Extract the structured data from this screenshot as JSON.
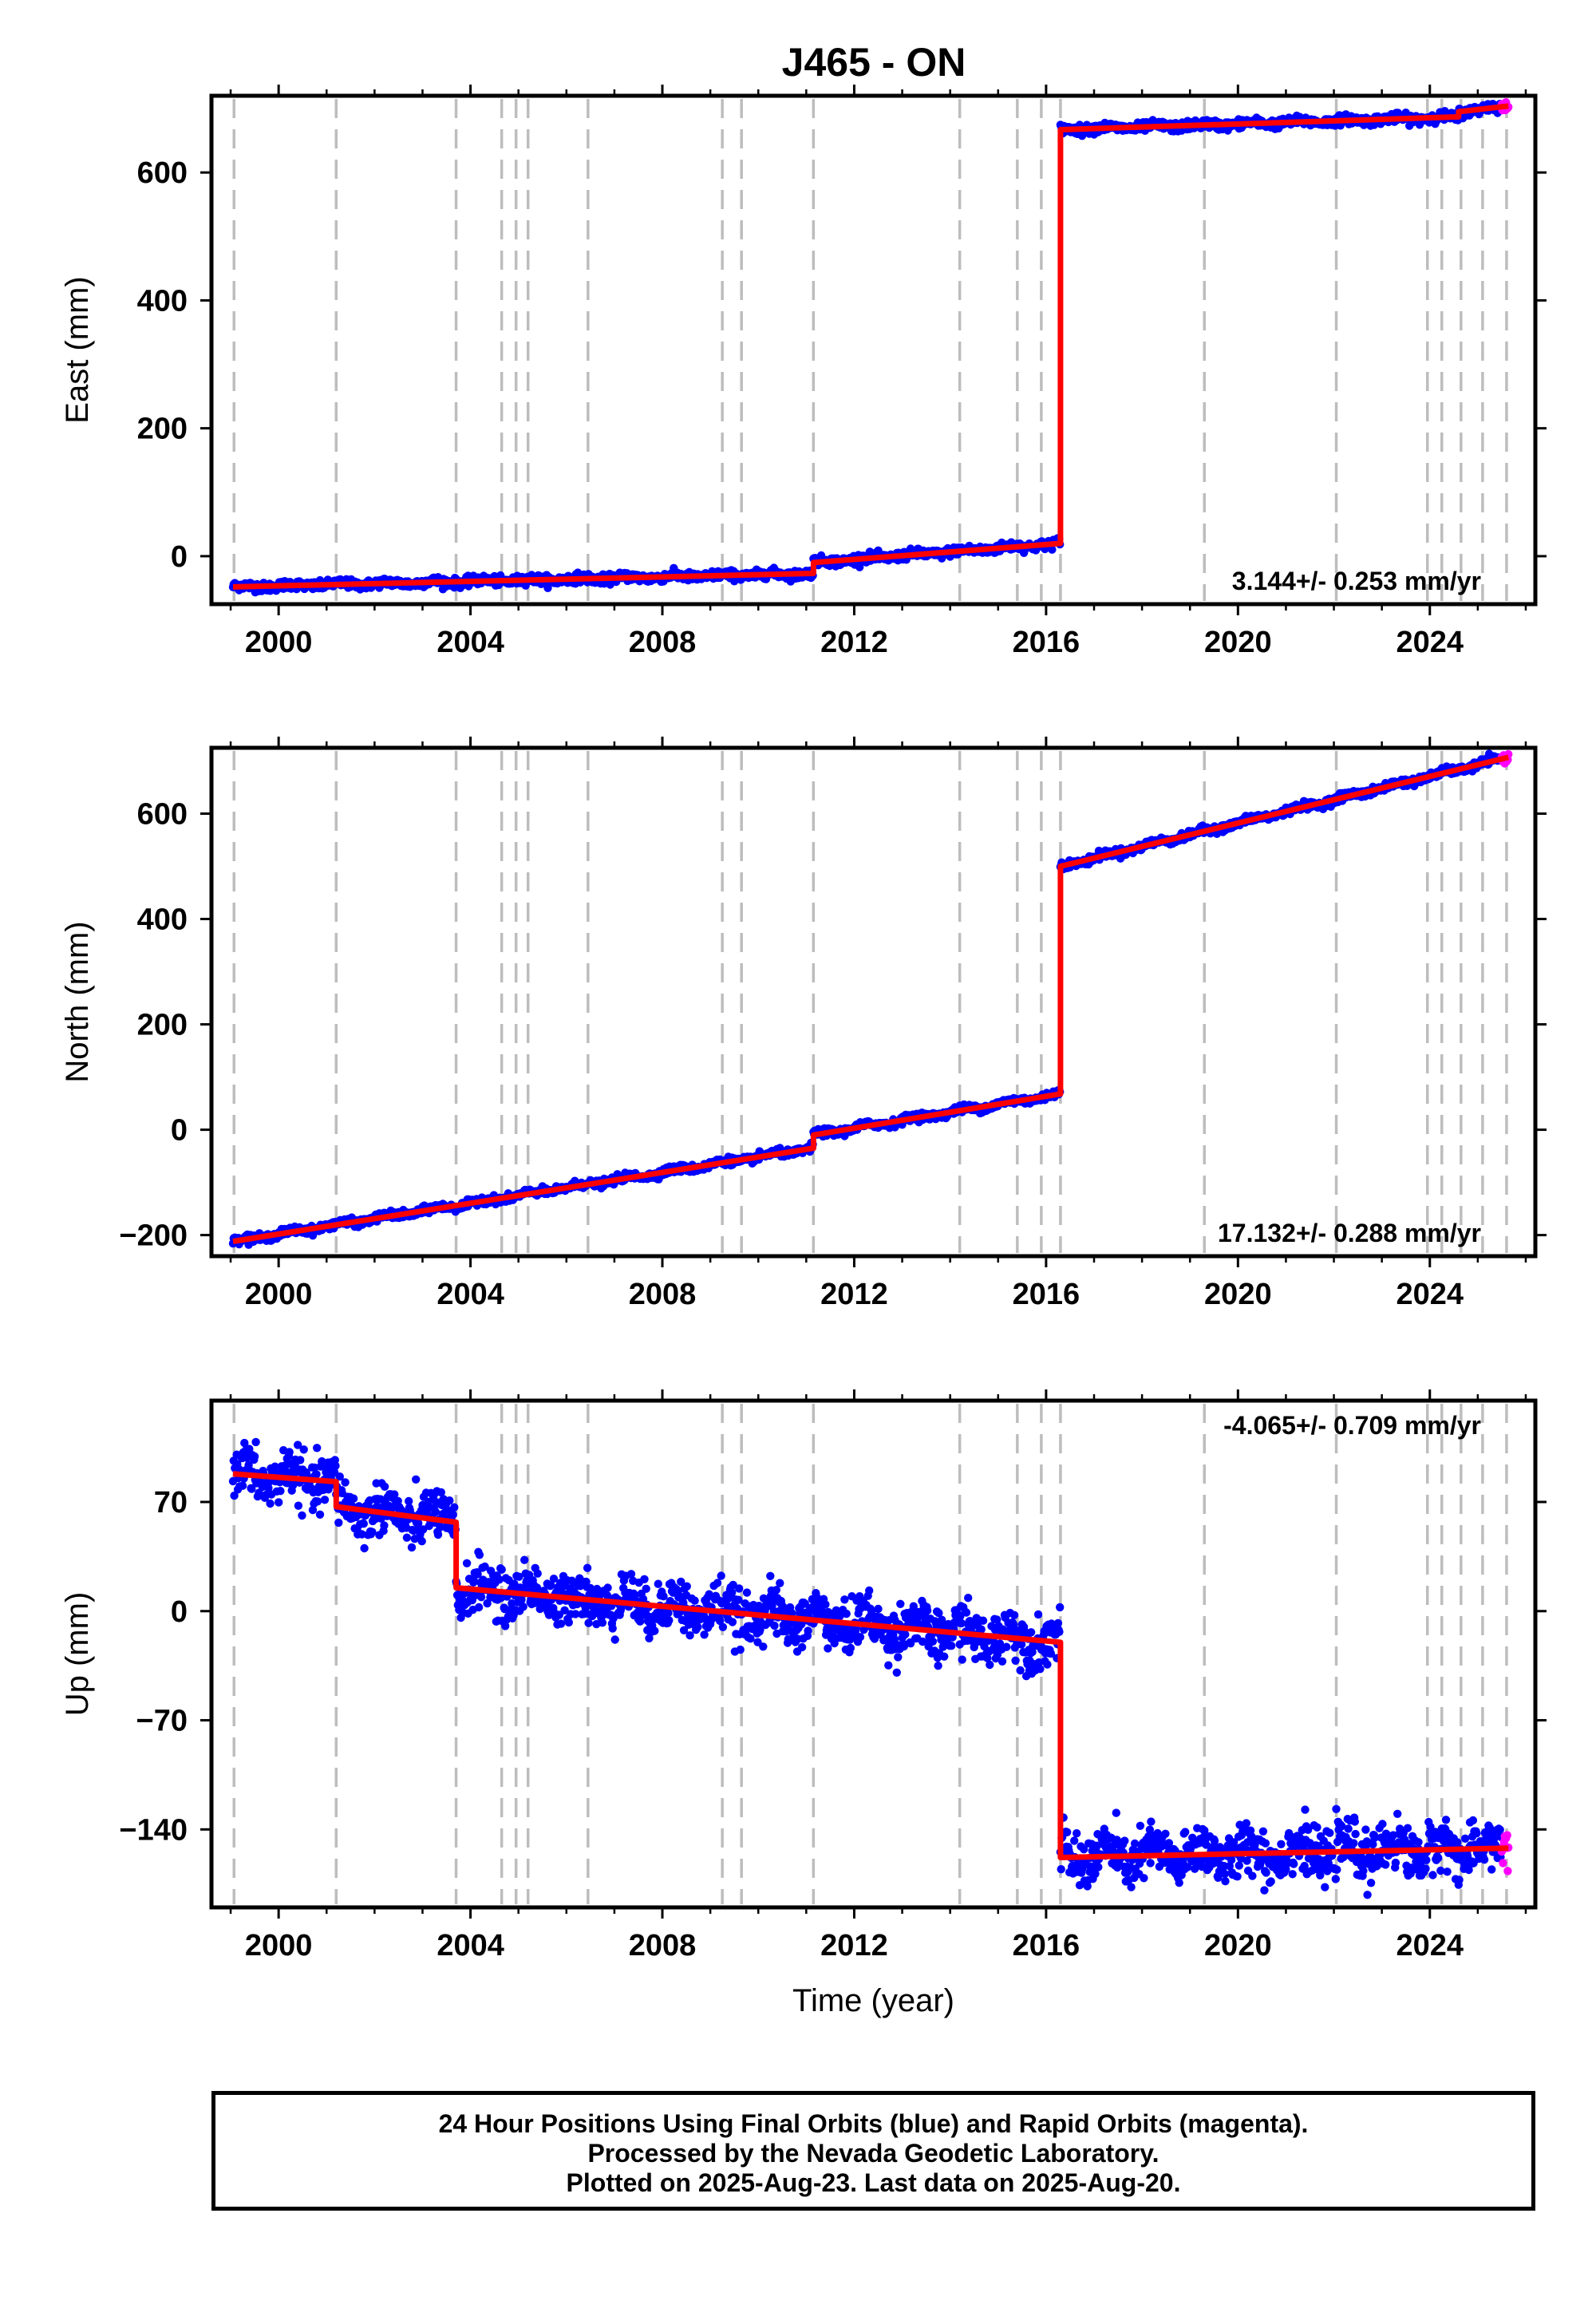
{
  "title": "J465 - ON",
  "colors": {
    "final_orbits": "#0000ff",
    "rapid_orbits": "#ff00ff",
    "model": "#ff0000",
    "event_lines": "#bdbdbd"
  },
  "chart_data": [
    {
      "type": "scatter",
      "component": "east",
      "ylabel": "East (mm)",
      "xlim": [
        1998.6,
        2026.2
      ],
      "ylim": [
        -75,
        720
      ],
      "xticks": [
        2000,
        2004,
        2008,
        2012,
        2016,
        2020,
        2024
      ],
      "yticks": [
        0,
        200,
        400,
        600
      ],
      "rate_label": "3.144+/- 0.253 mm/yr",
      "rate_position": "bottom-right",
      "grid": false,
      "steps": [
        {
          "start": 1999.05,
          "end": 2011.15,
          "from": -48,
          "to": -27
        },
        {
          "start": 2011.15,
          "end": 2016.3,
          "from": -10,
          "to": 20
        },
        {
          "start": 2016.3,
          "end": 2024.6,
          "from": 667,
          "to": 687
        },
        {
          "start": 2024.6,
          "end": 2025.64,
          "from": 695,
          "to": 704
        }
      ],
      "scatter_sd": 3.5,
      "seasonal_amplitude": 2,
      "rapid_from": 2025.5
    },
    {
      "type": "scatter",
      "component": "north",
      "ylabel": "North (mm)",
      "xlim": [
        1998.6,
        2026.2
      ],
      "ylim": [
        -240,
        725
      ],
      "xticks": [
        2000,
        2004,
        2008,
        2012,
        2016,
        2020,
        2024
      ],
      "yticks": [
        -200,
        0,
        200,
        400,
        600
      ],
      "rate_label": "17.132+/- 0.288 mm/yr",
      "rate_position": "bottom-right",
      "grid": false,
      "steps": [
        {
          "start": 1999.05,
          "end": 2011.15,
          "from": -212,
          "to": -35
        },
        {
          "start": 2011.15,
          "end": 2016.3,
          "from": -10,
          "to": 68
        },
        {
          "start": 2016.3,
          "end": 2025.64,
          "from": 500,
          "to": 707
        }
      ],
      "scatter_sd": 3.5,
      "seasonal_amplitude": 3,
      "rapid_from": 2025.5
    },
    {
      "type": "scatter",
      "component": "up",
      "ylabel": "Up (mm)",
      "xlabel": "Time (year)",
      "xlim": [
        1998.6,
        2026.2
      ],
      "ylim": [
        -190,
        135
      ],
      "xticks": [
        2000,
        2004,
        2008,
        2012,
        2016,
        2020,
        2024
      ],
      "yticks": [
        -140,
        -70,
        0,
        70
      ],
      "rate_label": "-4.065+/- 0.709 mm/yr",
      "rate_position": "top-right",
      "grid": false,
      "steps": [
        {
          "start": 1999.05,
          "end": 2001.2,
          "from": 88,
          "to": 83
        },
        {
          "start": 2001.2,
          "end": 2003.7,
          "from": 67,
          "to": 57
        },
        {
          "start": 2003.7,
          "end": 2016.3,
          "from": 15,
          "to": -20
        },
        {
          "start": 2016.3,
          "end": 2025.64,
          "from": -158,
          "to": -152
        }
      ],
      "scatter_sd": 8,
      "seasonal_amplitude": 6,
      "rapid_from": 2025.5
    }
  ],
  "event_lines": [
    1999.07,
    2001.2,
    2003.7,
    2004.65,
    2004.95,
    2005.2,
    2006.45,
    2009.25,
    2009.65,
    2011.15,
    2014.2,
    2015.4,
    2015.9,
    2016.3,
    2019.3,
    2022.05,
    2023.95,
    2024.25,
    2024.65,
    2025.1,
    2025.6
  ],
  "footer": {
    "line1": "24 Hour Positions Using Final Orbits (blue) and Rapid Orbits (magenta).",
    "line2": "Processed by the Nevada Geodetic Laboratory.",
    "line3": "Plotted on 2025-Aug-23. Last data on 2025-Aug-20."
  }
}
